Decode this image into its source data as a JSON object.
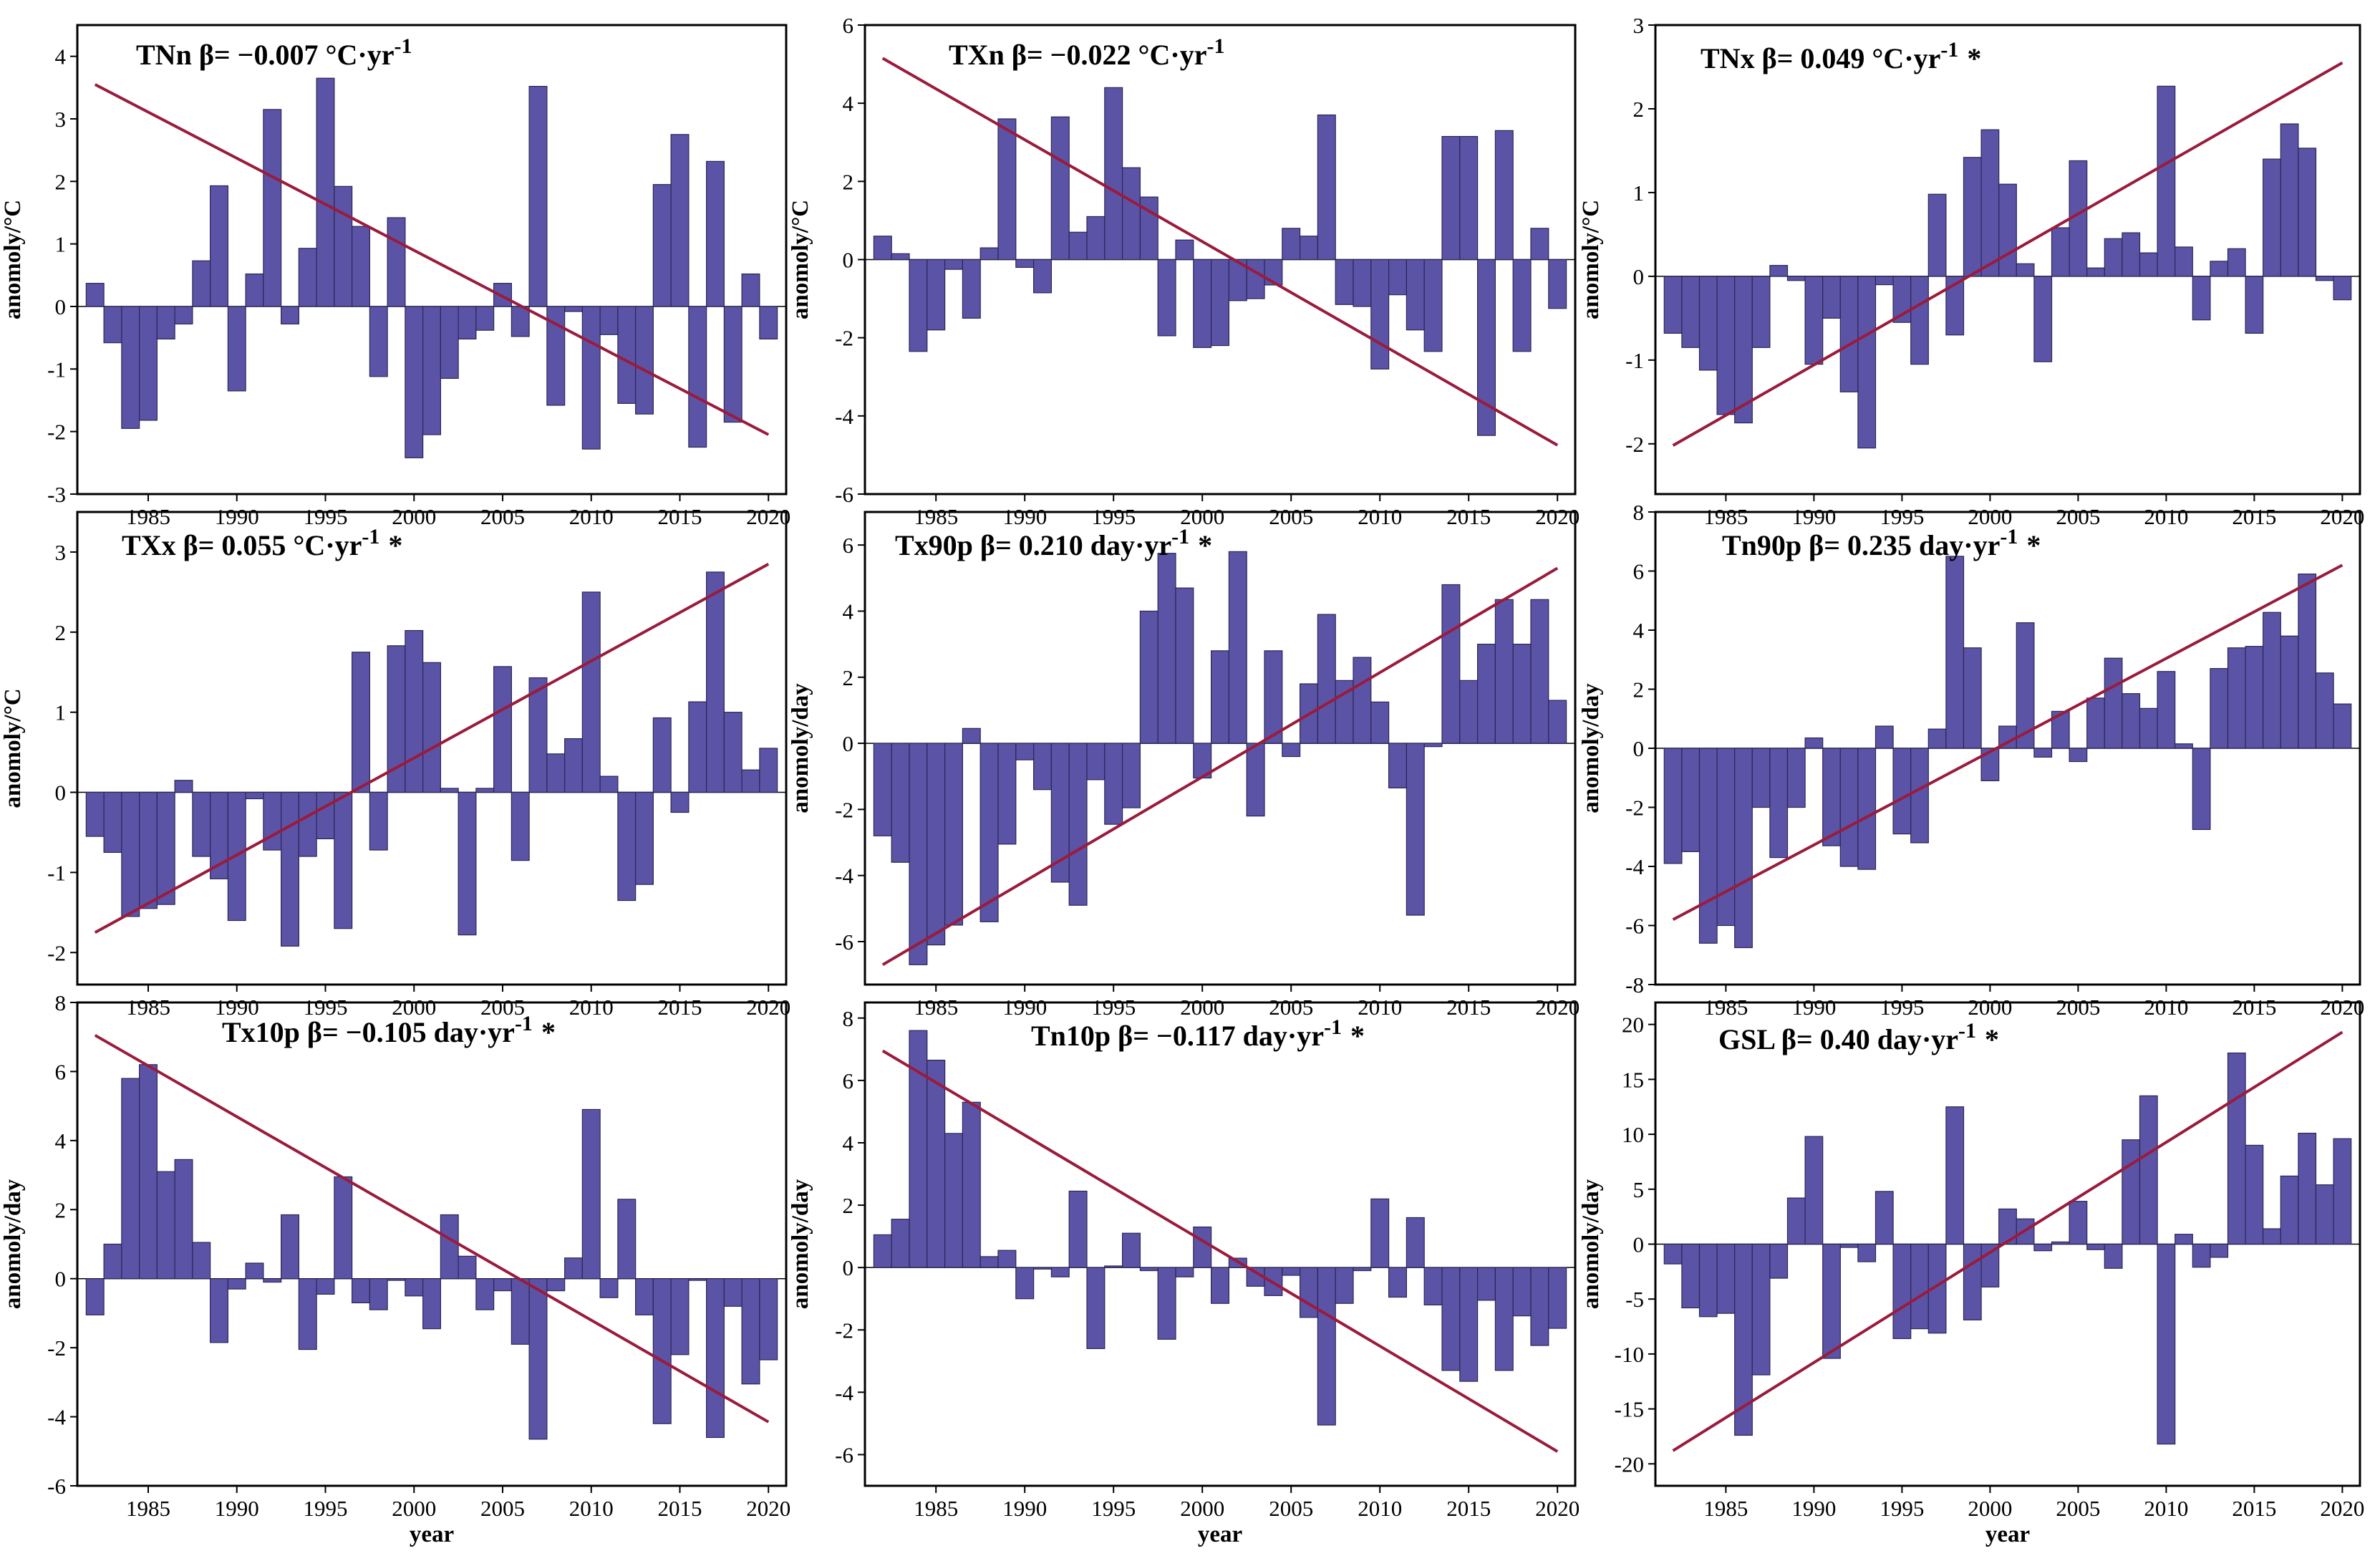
{
  "style": {
    "bar_color": "#5b54a6",
    "bar_edge": "#2b2556",
    "trend_color": "#9a1b3c"
  },
  "years": [
    1982,
    1983,
    1984,
    1985,
    1986,
    1987,
    1988,
    1989,
    1990,
    1991,
    1992,
    1993,
    1994,
    1995,
    1996,
    1997,
    1998,
    1999,
    2000,
    2001,
    2002,
    2003,
    2004,
    2005,
    2006,
    2007,
    2008,
    2009,
    2010,
    2011,
    2012,
    2013,
    2014,
    2015,
    2016,
    2017,
    2018,
    2019,
    2020
  ],
  "chart_data": [
    {
      "type": "bar",
      "title": "TNn  β= −0.007 °C·yr",
      "title_sup": "-1",
      "title_star": "",
      "ylabel": "anomoly/°C",
      "xlabel": "",
      "ylim": [
        -3,
        4.5
      ],
      "yticks": [
        -3,
        -2,
        -1,
        0,
        1,
        2,
        3,
        4
      ],
      "xticks": [
        1985,
        1990,
        1995,
        2000,
        2005,
        2010,
        2015,
        2020
      ],
      "values": [
        0.37,
        -0.58,
        -1.95,
        -1.82,
        -0.52,
        -0.28,
        0.73,
        1.93,
        -1.35,
        0.52,
        3.15,
        -0.28,
        0.93,
        3.65,
        1.92,
        1.28,
        -1.12,
        1.42,
        -2.42,
        -2.05,
        -1.15,
        -0.52,
        -0.38,
        0.37,
        -0.48,
        3.52,
        -1.58,
        -0.08,
        -2.28,
        -0.45,
        -1.55,
        -1.72,
        1.95,
        2.75,
        -2.25,
        2.32,
        -1.85,
        0.52,
        -0.52
      ],
      "trend": {
        "x": [
          1982,
          2020
        ],
        "y": [
          3.55,
          -2.05
        ]
      }
    },
    {
      "type": "bar",
      "title": "TXn  β= −0.022 °C·yr",
      "title_sup": "-1",
      "title_star": "",
      "ylabel": "anomoly/°C",
      "xlabel": "",
      "ylim": [
        -6,
        6
      ],
      "yticks": [
        -6,
        -4,
        -2,
        0,
        2,
        4,
        6
      ],
      "xticks": [
        1985,
        1990,
        1995,
        2000,
        2005,
        2010,
        2015,
        2020
      ],
      "values": [
        0.6,
        0.15,
        -2.35,
        -1.8,
        -0.25,
        -1.5,
        0.3,
        3.6,
        -0.2,
        -0.85,
        3.65,
        0.7,
        1.1,
        4.4,
        2.35,
        1.6,
        -1.95,
        0.5,
        -2.25,
        -2.2,
        -1.05,
        -1.0,
        -0.65,
        0.8,
        0.6,
        3.7,
        -1.15,
        -1.2,
        -2.8,
        -0.9,
        -1.8,
        -2.35,
        3.15,
        3.15,
        -4.5,
        3.3,
        -2.35,
        0.8,
        -1.25
      ],
      "trend": {
        "x": [
          1982,
          2020
        ],
        "y": [
          5.15,
          -4.75
        ]
      }
    },
    {
      "type": "bar",
      "title": "TNx  β= 0.049 °C·yr",
      "title_sup": "-1",
      "title_star": "*",
      "ylabel": "anomoly/°C",
      "xlabel": "",
      "ylim": [
        -2.6,
        3
      ],
      "yticks": [
        -2,
        -1,
        0,
        1,
        2,
        3
      ],
      "xticks": [
        1985,
        1990,
        1995,
        2000,
        2005,
        2010,
        2015,
        2020
      ],
      "values": [
        -0.68,
        -0.85,
        -1.12,
        -1.65,
        -1.75,
        -0.85,
        0.13,
        -0.05,
        -1.05,
        -0.5,
        -1.38,
        -2.05,
        -0.1,
        -0.55,
        -1.05,
        0.98,
        -0.7,
        1.42,
        1.75,
        1.1,
        0.15,
        -1.02,
        0.58,
        1.38,
        0.1,
        0.45,
        0.52,
        0.28,
        2.27,
        0.35,
        -0.52,
        0.18,
        0.33,
        -0.68,
        1.4,
        1.82,
        1.53,
        -0.05,
        -0.28
      ],
      "trend": {
        "x": [
          1982,
          2020
        ],
        "y": [
          -2.02,
          2.55
        ]
      }
    },
    {
      "type": "bar",
      "title": "TXx  β= 0.055 °C·yr",
      "title_sup": "-1",
      "title_star": "*",
      "ylabel": "anomoly/°C",
      "xlabel": "",
      "ylim": [
        -2.4,
        3.5
      ],
      "yticks": [
        -2,
        -1,
        0,
        1,
        2,
        3
      ],
      "xticks": [
        1985,
        1990,
        1995,
        2000,
        2005,
        2010,
        2015,
        2020
      ],
      "values": [
        -0.55,
        -0.75,
        -1.55,
        -1.45,
        -1.4,
        0.15,
        -0.8,
        -1.08,
        -1.6,
        -0.08,
        -0.72,
        -1.92,
        -0.8,
        -0.58,
        -1.7,
        1.75,
        -0.72,
        1.83,
        2.02,
        1.62,
        0.05,
        -1.78,
        0.05,
        1.57,
        -0.85,
        1.43,
        0.48,
        0.67,
        2.5,
        0.2,
        -1.35,
        -1.15,
        0.93,
        -0.25,
        1.13,
        2.75,
        1.0,
        0.28,
        0.55
      ],
      "trend": {
        "x": [
          1982,
          2020
        ],
        "y": [
          -1.75,
          2.85
        ]
      }
    },
    {
      "type": "bar",
      "title": "Tx90p  β= 0.210 day·yr",
      "title_sup": "-1",
      "title_star": "*",
      "ylabel": "anomoly/day",
      "xlabel": "",
      "ylim": [
        -7.3,
        7
      ],
      "yticks": [
        -6,
        -4,
        -2,
        0,
        2,
        4,
        6
      ],
      "xticks": [
        1985,
        1990,
        1995,
        2000,
        2005,
        2010,
        2015,
        2020
      ],
      "values": [
        -2.8,
        -3.6,
        -6.7,
        -6.1,
        -5.5,
        0.45,
        -5.4,
        -3.05,
        -0.5,
        -1.4,
        -4.2,
        -4.9,
        -1.1,
        -2.45,
        -1.95,
        4.0,
        5.75,
        4.7,
        -1.05,
        2.8,
        5.8,
        -2.2,
        2.8,
        -0.4,
        1.8,
        3.9,
        1.9,
        2.6,
        1.25,
        -1.35,
        -5.2,
        -0.1,
        4.8,
        1.9,
        3.0,
        4.35,
        3.0,
        4.35,
        1.3
      ],
      "trend": {
        "x": [
          1982,
          2020
        ],
        "y": [
          -6.7,
          5.3
        ]
      }
    },
    {
      "type": "bar",
      "title": "Tn90p  β= 0.235 day·yr",
      "title_sup": "-1",
      "title_star": "*",
      "ylabel": "anomoly/day",
      "xlabel": "",
      "ylim": [
        -8,
        8
      ],
      "yticks": [
        -8,
        -6,
        -4,
        -2,
        0,
        2,
        4,
        6,
        8
      ],
      "xticks": [
        1985,
        1990,
        1995,
        2000,
        2005,
        2010,
        2015,
        2020
      ],
      "values": [
        -3.9,
        -3.5,
        -6.6,
        -6.0,
        -6.75,
        -2.0,
        -3.7,
        -2.0,
        0.35,
        -3.3,
        -4.0,
        -4.1,
        0.75,
        -2.9,
        -3.2,
        0.65,
        6.5,
        3.4,
        -1.1,
        0.75,
        4.25,
        -0.3,
        1.25,
        -0.45,
        1.7,
        3.05,
        1.85,
        1.35,
        2.6,
        0.15,
        -2.75,
        2.7,
        3.4,
        3.45,
        4.6,
        3.8,
        5.9,
        2.55,
        1.5
      ],
      "trend": {
        "x": [
          1982,
          2020
        ],
        "y": [
          -5.8,
          6.2
        ]
      }
    },
    {
      "type": "bar",
      "title": "Tx10p  β= −0.105 day·yr",
      "title_sup": "-1",
      "title_star": "*",
      "ylabel": "anomoly/day",
      "xlabel": "year",
      "ylim": [
        -6,
        8
      ],
      "yticks": [
        -6,
        -4,
        -2,
        0,
        2,
        4,
        6,
        8
      ],
      "xticks": [
        1985,
        1990,
        1995,
        2000,
        2005,
        2010,
        2015,
        2020
      ],
      "values": [
        -1.05,
        1.0,
        5.8,
        6.2,
        3.1,
        3.45,
        1.05,
        -1.85,
        -0.3,
        0.45,
        -0.1,
        1.85,
        -2.05,
        -0.45,
        2.95,
        -0.7,
        -0.9,
        -0.05,
        -0.5,
        -1.45,
        1.85,
        0.65,
        -0.9,
        -0.35,
        -1.9,
        -4.65,
        -0.35,
        0.6,
        4.9,
        -0.55,
        2.3,
        -1.05,
        -4.2,
        -2.2,
        -0.05,
        -4.6,
        -0.8,
        -3.05,
        -2.35
      ],
      "trend": {
        "x": [
          1982,
          2020
        ],
        "y": [
          7.05,
          -4.15
        ]
      }
    },
    {
      "type": "bar",
      "title": "Tn10p  β= −0.117 day·yr",
      "title_sup": "-1",
      "title_star": "*",
      "ylabel": "anomoly/day",
      "xlabel": "year",
      "ylim": [
        -7,
        8.5
      ],
      "yticks": [
        -6,
        -4,
        -2,
        0,
        2,
        4,
        6,
        8
      ],
      "xticks": [
        1985,
        1990,
        1995,
        2000,
        2005,
        2010,
        2015,
        2020
      ],
      "values": [
        1.05,
        1.55,
        7.6,
        6.65,
        4.3,
        5.3,
        0.35,
        0.55,
        -1.0,
        -0.05,
        -0.3,
        2.45,
        -2.6,
        0.05,
        1.1,
        -0.1,
        -2.3,
        -0.3,
        1.3,
        -1.15,
        0.3,
        -0.6,
        -0.9,
        -0.25,
        -1.6,
        -5.05,
        -1.15,
        -0.1,
        2.2,
        -0.95,
        1.6,
        -1.2,
        -3.3,
        -3.65,
        -1.05,
        -3.3,
        -1.55,
        -2.5,
        -1.95
      ],
      "trend": {
        "x": [
          1982,
          2020
        ],
        "y": [
          6.95,
          -5.9
        ]
      }
    },
    {
      "type": "bar",
      "title": "GSL β= 0.40 day·yr",
      "title_sup": "-1",
      "title_star": "*",
      "ylabel": "anomoly/day",
      "xlabel": "year",
      "ylim": [
        -22,
        22
      ],
      "yticks": [
        -20,
        -15,
        -10,
        -5,
        0,
        5,
        10,
        15,
        20
      ],
      "xticks": [
        1985,
        1990,
        1995,
        2000,
        2005,
        2010,
        2015,
        2020
      ],
      "values": [
        -1.8,
        -5.8,
        -6.6,
        -6.3,
        -17.4,
        -11.9,
        -3.1,
        4.2,
        9.8,
        -10.4,
        -0.3,
        -1.6,
        4.8,
        -8.6,
        -7.7,
        -8.1,
        12.5,
        -6.9,
        -3.9,
        3.2,
        2.3,
        -0.6,
        0.2,
        3.9,
        -0.5,
        -2.2,
        9.5,
        13.5,
        -18.2,
        0.9,
        -2.1,
        -1.2,
        17.4,
        9.0,
        1.4,
        6.2,
        10.1,
        5.4,
        9.6
      ],
      "trend": {
        "x": [
          1982,
          2020
        ],
        "y": [
          -18.8,
          19.3
        ]
      }
    }
  ]
}
